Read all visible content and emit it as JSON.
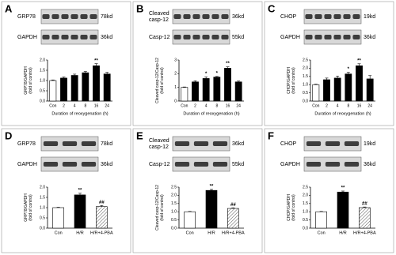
{
  "chart_data": [
    {
      "panel": "A",
      "type": "bar",
      "blots": [
        {
          "label": [
            "GRP78"
          ],
          "size": "78kd"
        },
        {
          "label": [
            "GAPDH"
          ],
          "size": "36kd"
        }
      ],
      "ylabel": [
        "GRP78/GAPDH",
        "(fold of control)"
      ],
      "xlabel": "Duration of reoxygenation (h)",
      "categories": [
        "Con",
        "2",
        "4",
        "8",
        "16",
        "24"
      ],
      "values": [
        1.0,
        1.12,
        1.25,
        1.38,
        1.72,
        1.32
      ],
      "errors": [
        0.03,
        0.05,
        0.06,
        0.06,
        0.1,
        0.08
      ],
      "annotations": [
        null,
        null,
        null,
        null,
        "**",
        null
      ],
      "colors": [
        "#ffffff",
        "#000000",
        "#000000",
        "#000000",
        "#000000",
        "#000000"
      ],
      "hatch": [
        false,
        false,
        false,
        false,
        false,
        false
      ],
      "ylim": [
        0,
        2
      ],
      "yticks": [
        {
          "value": 0,
          "label": "0.0"
        },
        0.5,
        {
          "value": 1,
          "label": "1.0"
        },
        1.5,
        {
          "value": 2,
          "label": "2.0"
        }
      ]
    },
    {
      "panel": "B",
      "type": "bar",
      "blots": [
        {
          "label": [
            "Cleaved",
            "casp-12"
          ],
          "size": "36kd"
        },
        {
          "label": [
            "Casp-12"
          ],
          "size": "55kd"
        }
      ],
      "ylabel": [
        "Cleaved casp-12/Casp-12",
        "(fold of control)"
      ],
      "xlabel": "Duration of reoxygenation (h)",
      "categories": [
        "Con",
        "2",
        "4",
        "8",
        "16",
        "24"
      ],
      "values": [
        1.0,
        1.4,
        1.65,
        1.75,
        2.4,
        1.4
      ],
      "errors": [
        0.03,
        0.08,
        0.12,
        0.05,
        0.1,
        0.06
      ],
      "annotations": [
        null,
        null,
        "*",
        "*",
        "**",
        null
      ],
      "colors": [
        "#ffffff",
        "#000000",
        "#000000",
        "#000000",
        "#000000",
        "#000000"
      ],
      "hatch": [
        false,
        false,
        false,
        false,
        false,
        false
      ],
      "ylim": [
        0,
        3
      ],
      "yticks": [
        0,
        1,
        2,
        3
      ]
    },
    {
      "panel": "C",
      "type": "bar",
      "blots": [
        {
          "label": [
            "CHOP"
          ],
          "size": "19kd"
        },
        {
          "label": [
            "GAPDH"
          ],
          "size": "36kd"
        }
      ],
      "ylabel": [
        "CHOP/GAPDH",
        "(fold of control)"
      ],
      "xlabel": "Duration of reoxygenation (h)",
      "categories": [
        "Con",
        "2",
        "4",
        "8",
        "16",
        "24"
      ],
      "values": [
        1.0,
        1.3,
        1.4,
        1.65,
        2.15,
        1.35
      ],
      "errors": [
        0.03,
        0.1,
        0.12,
        0.1,
        0.12,
        0.2
      ],
      "annotations": [
        null,
        null,
        null,
        "*",
        "**",
        null
      ],
      "colors": [
        "#ffffff",
        "#000000",
        "#000000",
        "#000000",
        "#000000",
        "#000000"
      ],
      "hatch": [
        false,
        false,
        false,
        false,
        false,
        false
      ],
      "ylim": [
        0,
        2.5
      ],
      "yticks": [
        {
          "value": 0,
          "label": "0.0"
        },
        0.5,
        {
          "value": 1,
          "label": "1.0"
        },
        1.5,
        {
          "value": 2,
          "label": "2.0"
        },
        2.5
      ]
    },
    {
      "panel": "D",
      "type": "bar",
      "blots": [
        {
          "label": [
            "GRP78"
          ],
          "size": "78kd"
        },
        {
          "label": [
            "GAPDH"
          ],
          "size": "36kd"
        }
      ],
      "ylabel": [
        "GRP78/GAPDH",
        "(fold of control)"
      ],
      "categories": [
        "Con",
        "H/R",
        "H/R+4-PBA"
      ],
      "values": [
        1.0,
        1.62,
        1.05
      ],
      "errors": [
        0.02,
        0.08,
        0.05
      ],
      "annotations": [
        null,
        "**",
        "##"
      ],
      "colors": [
        "#ffffff",
        "#000000",
        "#ffffff"
      ],
      "hatch": [
        false,
        false,
        true
      ],
      "ylim": [
        0,
        2
      ],
      "yticks": [
        {
          "value": 0,
          "label": "0.0"
        },
        0.5,
        {
          "value": 1,
          "label": "1.0"
        },
        1.5,
        {
          "value": 2,
          "label": "2.0"
        }
      ]
    },
    {
      "panel": "E",
      "type": "bar",
      "blots": [
        {
          "label": [
            "Cleaved",
            "casp-12"
          ],
          "size": "36kd"
        },
        {
          "label": [
            "Casp-12"
          ],
          "size": "55kd"
        }
      ],
      "ylabel": [
        "Cleaved casp-12/Casp-12",
        "(fold of control)"
      ],
      "categories": [
        "Con",
        "H/R",
        "H/R+4-PBA"
      ],
      "values": [
        1.0,
        2.3,
        1.2
      ],
      "errors": [
        0.02,
        0.06,
        0.04
      ],
      "annotations": [
        null,
        "**",
        "##"
      ],
      "colors": [
        "#ffffff",
        "#000000",
        "#ffffff"
      ],
      "hatch": [
        false,
        false,
        true
      ],
      "ylim": [
        0,
        2.5
      ],
      "yticks": [
        {
          "value": 0,
          "label": "0.0"
        },
        0.5,
        {
          "value": 1,
          "label": "1.0"
        },
        1.5,
        {
          "value": 2,
          "label": "2.0"
        },
        2.5
      ]
    },
    {
      "panel": "F",
      "type": "bar",
      "blots": [
        {
          "label": [
            "CHOP"
          ],
          "size": "19kd"
        },
        {
          "label": [
            "GAPDH"
          ],
          "size": "36kd"
        }
      ],
      "ylabel": [
        "CHOP/GAPDH",
        "(fold of control)"
      ],
      "categories": [
        "Con",
        "H/R",
        "H/R+4-PBA"
      ],
      "values": [
        1.0,
        2.2,
        1.25
      ],
      "errors": [
        0.02,
        0.06,
        0.04
      ],
      "annotations": [
        null,
        "**",
        "##"
      ],
      "colors": [
        "#ffffff",
        "#000000",
        "#ffffff"
      ],
      "hatch": [
        false,
        false,
        true
      ],
      "ylim": [
        0,
        2.5
      ],
      "yticks": [
        {
          "value": 0,
          "label": "0.0"
        },
        0.5,
        {
          "value": 1,
          "label": "1.0"
        },
        1.5,
        {
          "value": 2,
          "label": "2.0"
        },
        2.5
      ]
    }
  ]
}
